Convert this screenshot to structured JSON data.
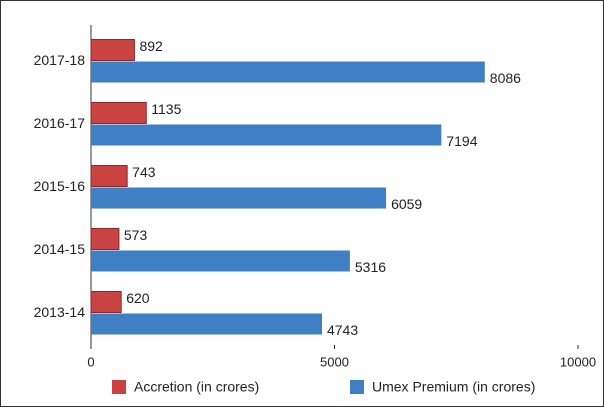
{
  "chart_data": {
    "type": "bar",
    "orientation": "horizontal",
    "categories": [
      "2017-18",
      "2016-17",
      "2015-16",
      "2014-15",
      "2013-14"
    ],
    "series": [
      {
        "name": "Accretion (in crores)",
        "color": "#c94343",
        "values": [
          892,
          1135,
          743,
          573,
          620
        ]
      },
      {
        "name": "Umex Premium (in crores)",
        "color": "#3f7fc3",
        "values": [
          8086,
          7194,
          6059,
          5316,
          4743
        ]
      }
    ],
    "xlim": [
      0,
      10000
    ],
    "xticks": [
      0,
      5000,
      10000
    ],
    "legend": "bottom"
  }
}
